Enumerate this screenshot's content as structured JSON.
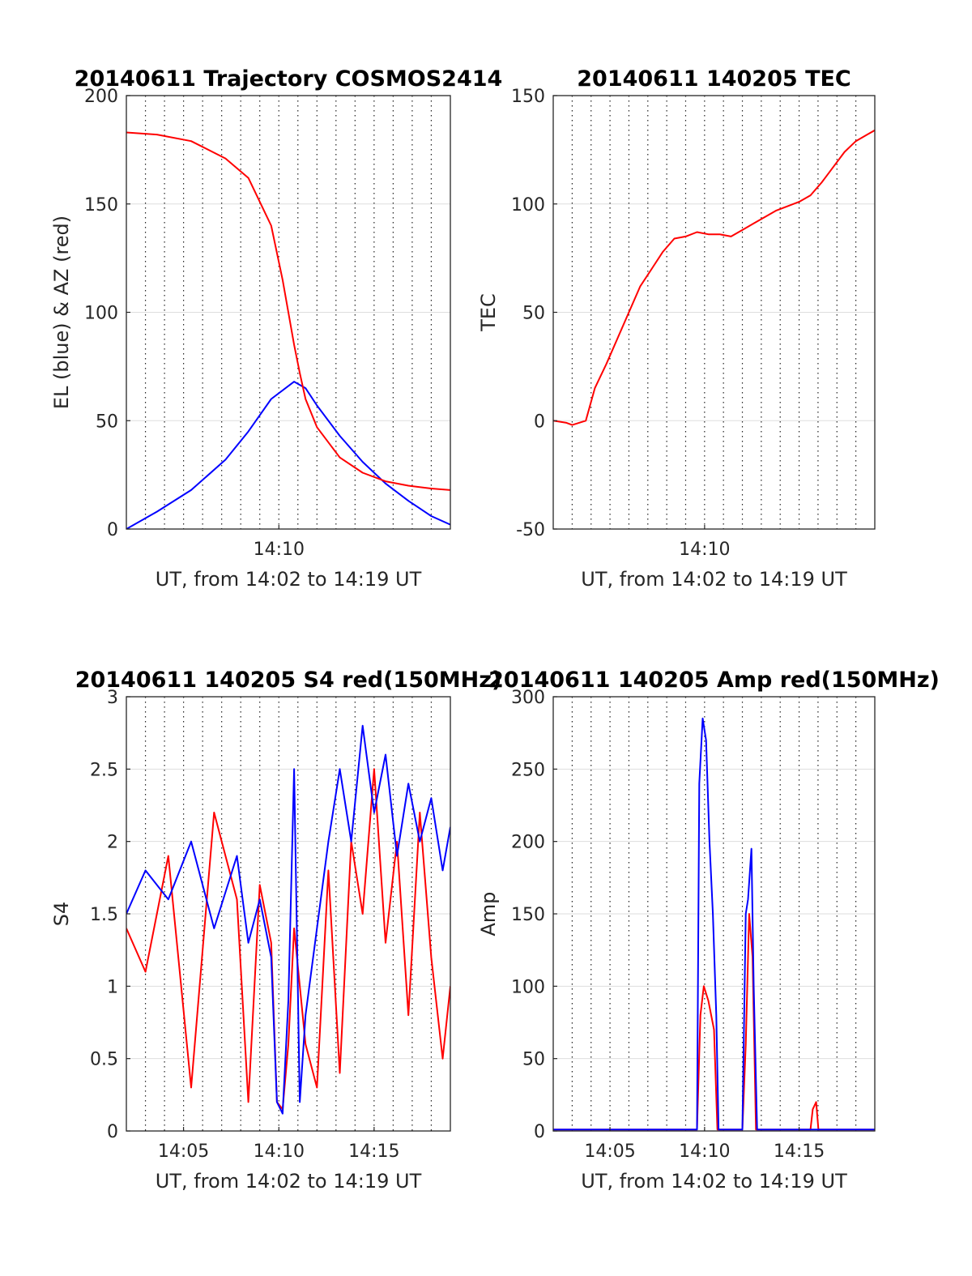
{
  "chart_data": [
    {
      "type": "line",
      "title": "20140611 Trajectory COSMOS2414",
      "xlabel": "UT, from 14:02 to 14:19 UT",
      "ylabel": "EL (blue) & AZ (red)",
      "xlim": [
        14.0333,
        14.3167
      ],
      "ylim": [
        0,
        200
      ],
      "yticks": [
        0,
        50,
        100,
        150,
        200
      ],
      "xticks": [
        {
          "value": 14.1667,
          "label": "14:10"
        }
      ],
      "grid": true,
      "series": [
        {
          "color": "#0000ff",
          "x": [
            14.0333,
            14.06,
            14.09,
            14.12,
            14.14,
            14.16,
            14.18,
            14.19,
            14.2,
            14.22,
            14.24,
            14.26,
            14.28,
            14.3,
            14.3167
          ],
          "values": [
            0,
            8,
            18,
            32,
            45,
            60,
            68,
            65,
            57,
            43,
            31,
            21,
            13,
            6,
            2
          ]
        },
        {
          "color": "#ff0000",
          "x": [
            14.0333,
            14.06,
            14.09,
            14.12,
            14.14,
            14.16,
            14.17,
            14.175,
            14.18,
            14.185,
            14.19,
            14.2,
            14.22,
            14.24,
            14.26,
            14.28,
            14.3,
            14.3167
          ],
          "values": [
            183,
            182,
            179,
            171,
            162,
            140,
            115,
            100,
            85,
            72,
            60,
            47,
            33,
            26,
            22,
            20,
            18.7,
            18
          ]
        }
      ]
    },
    {
      "type": "line",
      "title": "20140611 140205 TEC",
      "xlabel": "UT, from 14:02 to 14:19 UT",
      "ylabel": "TEC",
      "xlim": [
        14.0333,
        14.3167
      ],
      "ylim": [
        -50,
        150
      ],
      "yticks": [
        -50,
        0,
        50,
        100,
        150
      ],
      "xticks": [
        {
          "value": 14.1667,
          "label": "14:10"
        }
      ],
      "grid": true,
      "series": [
        {
          "color": "#ff0000",
          "x": [
            14.0333,
            14.045,
            14.05,
            14.062,
            14.07,
            14.08,
            14.09,
            14.1,
            14.11,
            14.12,
            14.13,
            14.14,
            14.15,
            14.16,
            14.17,
            14.18,
            14.19,
            14.2,
            14.21,
            14.22,
            14.23,
            14.24,
            14.25,
            14.26,
            14.27,
            14.28,
            14.29,
            14.3,
            14.31,
            14.3167
          ],
          "values": [
            0,
            -1,
            -2,
            0,
            15,
            26,
            38,
            50,
            62,
            70,
            78,
            84,
            85,
            87,
            86,
            86,
            85,
            88,
            91,
            94,
            97,
            99,
            101,
            104,
            110,
            117,
            124,
            129,
            132,
            134
          ]
        }
      ]
    },
    {
      "type": "line",
      "title": "20140611 140205 S4 red(150MHz)",
      "xlabel": "UT, from 14:02 to 14:19 UT",
      "ylabel": "S4",
      "xlim": [
        14.0333,
        14.3167
      ],
      "ylim": [
        0,
        3
      ],
      "yticks": [
        0,
        0.5,
        1,
        1.5,
        2,
        2.5,
        3
      ],
      "xticks": [
        {
          "value": 14.0833,
          "label": "14:05"
        },
        {
          "value": 14.1667,
          "label": "14:10"
        },
        {
          "value": 14.25,
          "label": "14:15"
        }
      ],
      "grid": true,
      "series": [
        {
          "color": "#ff0000",
          "x": [
            14.0333,
            14.05,
            14.07,
            14.09,
            14.11,
            14.13,
            14.14,
            14.15,
            14.16,
            14.165,
            14.17,
            14.175,
            14.18,
            14.19,
            14.2,
            14.21,
            14.22,
            14.23,
            14.24,
            14.25,
            14.26,
            14.27,
            14.28,
            14.29,
            14.3,
            14.31,
            14.3167
          ],
          "values": [
            1.4,
            1.1,
            1.9,
            0.3,
            2.2,
            1.6,
            0.2,
            1.7,
            1.3,
            0.2,
            0.15,
            0.6,
            1.4,
            0.6,
            0.3,
            1.8,
            0.4,
            2.0,
            1.5,
            2.5,
            1.3,
            2.0,
            0.8,
            2.2,
            1.2,
            0.5,
            1.0
          ]
        },
        {
          "color": "#0000ff",
          "x": [
            14.0333,
            14.05,
            14.07,
            14.09,
            14.11,
            14.13,
            14.14,
            14.15,
            14.16,
            14.165,
            14.17,
            14.175,
            14.18,
            14.185,
            14.19,
            14.2,
            14.21,
            14.22,
            14.23,
            14.24,
            14.25,
            14.26,
            14.27,
            14.28,
            14.29,
            14.3,
            14.31,
            14.3167
          ],
          "values": [
            1.5,
            1.8,
            1.6,
            2.0,
            1.4,
            1.9,
            1.3,
            1.6,
            1.2,
            0.2,
            0.12,
            0.9,
            2.5,
            0.2,
            0.8,
            1.4,
            2.0,
            2.5,
            2.0,
            2.8,
            2.2,
            2.6,
            1.9,
            2.4,
            2.0,
            2.3,
            1.8,
            2.1
          ]
        }
      ]
    },
    {
      "type": "line",
      "title": "20140611 140205 Amp red(150MHz)",
      "xlabel": "UT, from 14:02 to 14:19 UT",
      "ylabel": "Amp",
      "xlim": [
        14.0333,
        14.3167
      ],
      "ylim": [
        0,
        300
      ],
      "yticks": [
        0,
        50,
        100,
        150,
        200,
        250,
        300
      ],
      "xticks": [
        {
          "value": 14.0833,
          "label": "14:05"
        },
        {
          "value": 14.1667,
          "label": "14:10"
        },
        {
          "value": 14.25,
          "label": "14:15"
        }
      ],
      "grid": true,
      "series": [
        {
          "color": "#ff0000",
          "x": [
            14.0333,
            14.16,
            14.163,
            14.166,
            14.17,
            14.175,
            14.178,
            14.18,
            14.2,
            14.203,
            14.206,
            14.209,
            14.212,
            14.26,
            14.262,
            14.265,
            14.267,
            14.3167
          ],
          "values": [
            1,
            1,
            80,
            100,
            90,
            70,
            1,
            1,
            1,
            60,
            150,
            120,
            1,
            1,
            15,
            20,
            1,
            1
          ]
        },
        {
          "color": "#0000ff",
          "x": [
            14.0333,
            14.16,
            14.162,
            14.165,
            14.168,
            14.171,
            14.174,
            14.177,
            14.179,
            14.2,
            14.203,
            14.205,
            14.208,
            14.21,
            14.213,
            14.3167
          ],
          "values": [
            1,
            1,
            240,
            285,
            270,
            200,
            150,
            80,
            1,
            1,
            150,
            160,
            195,
            100,
            1,
            1
          ]
        }
      ]
    }
  ]
}
